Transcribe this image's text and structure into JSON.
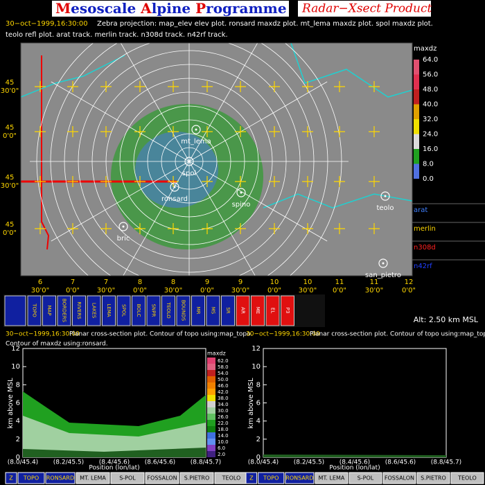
{
  "header": {
    "title_parts": [
      "M",
      "esoscale ",
      "A",
      "lpine ",
      "P",
      "rogramme"
    ],
    "product": "Radar−Xsect Product",
    "timestamp": "30−oct−1999,16:30:00",
    "description": "Zebra projection: map_elev elev plot. ronsard maxdz plot. mt_lema maxdz plot. spol maxdz plot.",
    "description2": "teolo refl plot. arat track.  merlin track.  n308d track.  n42rf track."
  },
  "map": {
    "lat_labels": [
      {
        "deg": "45",
        "min": "30'0\""
      },
      {
        "deg": "45",
        "min": "0'0\""
      },
      {
        "deg": "45",
        "min": "30'0\""
      },
      {
        "deg": "45",
        "min": "0'0\""
      }
    ],
    "lon_labels": [
      {
        "deg": "6",
        "min": "30'0\""
      },
      {
        "deg": "7",
        "min": "0'0\""
      },
      {
        "deg": "7",
        "min": "30'0\""
      },
      {
        "deg": "8",
        "min": "0'0\""
      },
      {
        "deg": "8",
        "min": "30'0\""
      },
      {
        "deg": "9",
        "min": "0'0\""
      },
      {
        "deg": "9",
        "min": "30'0\""
      },
      {
        "deg": "10",
        "min": "0'0\""
      },
      {
        "deg": "10",
        "min": "30'0\""
      },
      {
        "deg": "11",
        "min": "0'0\""
      },
      {
        "deg": "11",
        "min": "30'0\""
      },
      {
        "deg": "12",
        "min": "0'0\""
      }
    ],
    "sites": [
      "mt_lema",
      "spol",
      "ronsard",
      "spino",
      "bric",
      "teolo",
      "san_pietro"
    ],
    "colorbar": {
      "title": "maxdz",
      "labels": [
        "64.0",
        "56.0",
        "48.0",
        "40.0",
        "32.0",
        "24.0",
        "16.0",
        "8.0",
        "0.0"
      ]
    },
    "tracks": [
      "arat",
      "merlin",
      "n308d",
      "n42rf"
    ]
  },
  "toolbar": {
    "buttons": [
      "TOPO",
      "MAP",
      "BORDERS",
      "RIVERS",
      "LAKES",
      "LEMA",
      "SPOL",
      "BOLC",
      "SNPR",
      "TEOLO",
      "BOUNDS",
      "MR",
      "MS",
      "SR",
      "AR",
      "ME",
      "EL",
      "P3"
    ],
    "altitude": "Alt: 2.50 km MSL"
  },
  "panels": [
    {
      "timestamp": "30−oct−1999,16:30:00",
      "line1": "Planar cross-section plot.  Contour of topo using:map_topo.",
      "line2": "Contour of maxdz using:ronsard.",
      "ylabel": "km above MSL",
      "xlabel": "Position (lon/lat)",
      "ylim": [
        0,
        12
      ],
      "yticks": [
        0,
        2,
        4,
        6,
        8,
        10,
        12
      ],
      "xticks": [
        "(8.0/45.4)",
        "(8.2/45.5)",
        "(8.4/45.6)",
        "(8.6/45.6)",
        "(8.8/45.7)"
      ],
      "colorbar": {
        "title": "maxdz",
        "labels": [
          "62.0",
          "58.0",
          "54.0",
          "50.0",
          "46.0",
          "42.0",
          "38.0",
          "34.0",
          "30.0",
          "26.0",
          "22.0",
          "18.0",
          "14.0",
          "10.0",
          "6.0",
          "2.0"
        ]
      }
    },
    {
      "timestamp": "30−oct−1999,16:30:00",
      "line1": "Planar cross-section plot.  Contour of topo using:map_topo.",
      "ylabel": "km above MSL",
      "xlabel": "Position (lon/lat)",
      "ylim": [
        0,
        12
      ],
      "yticks": [
        0,
        2,
        4,
        6,
        8,
        10,
        12
      ],
      "xticks": [
        "(8.0/45.4)",
        "(8.2/45.5)",
        "(8.4/45.6)",
        "(8.6/45.6)",
        "(8.8/45.7)"
      ]
    }
  ],
  "bottom_buttons": [
    [
      "Z",
      "TOPO",
      "RONSARD",
      "MT. LEMA",
      "S-POL",
      "FOSSALON",
      "S.PIETRO",
      "TEOLO"
    ],
    [
      "Z",
      "TOPO",
      "RONSARD",
      "MT. LEMA",
      "S-POL",
      "FOSSALON",
      "S.PIETRO",
      "TEOLO"
    ]
  ]
}
